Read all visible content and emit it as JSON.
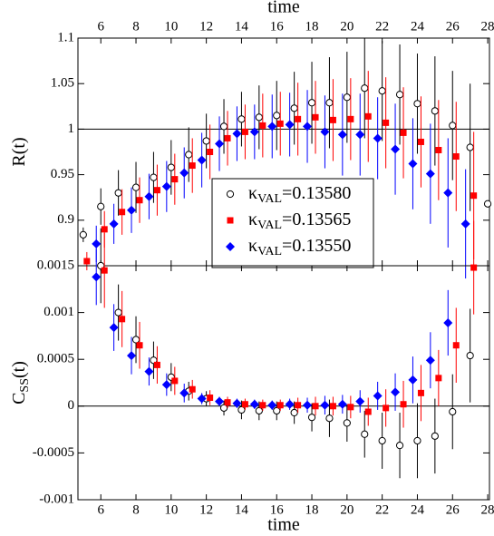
{
  "chart_data": [
    {
      "type": "scatter",
      "x_title": "time",
      "y_title": [
        "R(t)"
      ],
      "x": [
        5,
        6,
        7,
        8,
        9,
        10,
        11,
        12,
        13,
        14,
        15,
        16,
        17,
        18,
        19,
        20,
        21,
        22,
        23,
        24,
        25,
        26,
        27,
        28
      ],
      "xlim": [
        4.7,
        28.1
      ],
      "xticks": [
        6,
        8,
        10,
        12,
        14,
        16,
        18,
        20,
        22,
        24,
        26,
        28
      ],
      "ylim": [
        0.85,
        1.1
      ],
      "yticks": [
        0.9,
        0.95,
        1,
        1.05,
        1.1
      ],
      "hline": 1,
      "series": [
        {
          "name": [
            "κ",
            "VAL",
            "=0.13580"
          ],
          "marker": "circle",
          "color": "#000000",
          "values": [
            0.884,
            0.915,
            0.93,
            0.936,
            0.947,
            0.958,
            0.972,
            0.987,
            1.003,
            1.011,
            1.013,
            1.015,
            1.023,
            1.029,
            1.029,
            1.035,
            1.045,
            1.042,
            1.038,
            1.028,
            1.02,
            1.004,
            0.98,
            0.918
          ],
          "errors": [
            0.008,
            0.02,
            0.025,
            0.028,
            0.028,
            0.03,
            0.03,
            0.03,
            0.03,
            0.03,
            0.035,
            0.038,
            0.04,
            0.045,
            0.05,
            0.05,
            0.055,
            0.055,
            0.055,
            0.055,
            0.06,
            0.06,
            0.07,
            0
          ]
        },
        {
          "name": [
            "κ",
            "VAL",
            "=0.13565"
          ],
          "marker": "square",
          "color": "#ff0000",
          "values": [
            0.855,
            0.89,
            0.909,
            0.922,
            0.933,
            0.945,
            0.96,
            0.975,
            0.99,
            0.997,
            1.004,
            1.006,
            1.011,
            1.013,
            1.01,
            1.011,
            1.014,
            1.007,
            0.996,
            0.986,
            0.977,
            0.97,
            0.927,
            null
          ],
          "errors": [
            0.01,
            0.02,
            0.025,
            0.025,
            0.028,
            0.028,
            0.03,
            0.03,
            0.03,
            0.03,
            0.035,
            0.035,
            0.04,
            0.04,
            0.045,
            0.045,
            0.05,
            0.05,
            0.05,
            0.05,
            0.055,
            0.06,
            0.07,
            null
          ]
        },
        {
          "name": [
            "κ",
            "VAL",
            "=0.13550"
          ],
          "marker": "diamond",
          "color": "#0000ff",
          "values": [
            null,
            0.874,
            0.896,
            0.911,
            0.926,
            0.937,
            0.952,
            0.966,
            0.984,
            0.995,
            0.997,
            1.003,
            1.005,
            1.003,
            0.997,
            0.994,
            0.994,
            0.99,
            0.978,
            0.962,
            0.951,
            0.93,
            0.896,
            null
          ],
          "errors": [
            null,
            0.02,
            0.022,
            0.025,
            0.025,
            0.028,
            0.028,
            0.03,
            0.03,
            0.03,
            0.03,
            0.035,
            0.035,
            0.04,
            0.04,
            0.045,
            0.045,
            0.045,
            0.05,
            0.05,
            0.055,
            0.06,
            0.06,
            null
          ]
        }
      ]
    },
    {
      "type": "scatter",
      "x_title": "time",
      "y_title": [
        "C",
        "SS",
        "(t)"
      ],
      "x": [
        5,
        6,
        7,
        8,
        9,
        10,
        11,
        12,
        13,
        14,
        15,
        16,
        17,
        18,
        19,
        20,
        21,
        22,
        23,
        24,
        25,
        26,
        27,
        28
      ],
      "xlim": [
        4.7,
        28.1
      ],
      "xticks": [
        6,
        8,
        10,
        12,
        14,
        16,
        18,
        20,
        22,
        24,
        26,
        28
      ],
      "ylim": [
        -0.001,
        0.0015
      ],
      "yticks": [
        -0.001,
        -0.0005,
        0,
        0.0005,
        0.001,
        0.0015
      ],
      "hline": 0,
      "series": [
        {
          "name": [
            "κ",
            "VAL",
            "=0.13580"
          ],
          "marker": "circle",
          "color": "#000000",
          "values": [
            null,
            0.0015,
            0.001,
            0.00071,
            0.00049,
            0.00031,
            0.00016,
            8e-05,
            -2e-05,
            -4e-05,
            -5e-05,
            -5e-05,
            -7e-05,
            -0.00012,
            -0.00013,
            -0.00018,
            -0.0003,
            -0.00037,
            -0.00042,
            -0.00037,
            -0.00032,
            -6e-05,
            0.00054,
            null
          ],
          "errors": [
            null,
            0.0004,
            0.0003,
            0.00025,
            0.0002,
            0.00015,
            0.0001,
            8e-05,
            8e-05,
            0.0001,
            0.0001,
            0.0001,
            0.00012,
            0.00015,
            0.0002,
            0.0002,
            0.00025,
            0.0003,
            0.00035,
            0.0004,
            0.0004,
            0.0004,
            0.0005,
            null
          ]
        },
        {
          "name": [
            "κ",
            "VAL",
            "=0.13565"
          ],
          "marker": "square",
          "color": "#ff0000",
          "values": [
            null,
            0.00145,
            0.00093,
            0.00065,
            0.00044,
            0.00027,
            0.00018,
            9e-05,
            4e-05,
            2e-05,
            1e-05,
            1e-05,
            1e-05,
            0,
            0,
            -1e-05,
            -6e-05,
            -2e-05,
            2e-05,
            0.00014,
            0.0003,
            0.00065,
            0.00148,
            null
          ],
          "errors": [
            null,
            0.0004,
            0.0003,
            0.00025,
            0.0002,
            0.00015,
            0.0001,
            8e-05,
            6e-05,
            6e-05,
            6e-05,
            6e-05,
            8e-05,
            0.0001,
            0.0001,
            0.00012,
            0.00015,
            0.0002,
            0.00025,
            0.0003,
            0.0003,
            0.0004,
            0.0005,
            null
          ]
        },
        {
          "name": [
            "κ",
            "VAL",
            "=0.13550"
          ],
          "marker": "diamond",
          "color": "#0000ff",
          "values": [
            null,
            0.00138,
            0.00084,
            0.00054,
            0.00037,
            0.00023,
            0.00014,
            8e-05,
            5e-05,
            3e-05,
            2e-05,
            1e-05,
            2e-05,
            1e-05,
            1e-05,
            2e-05,
            5e-05,
            0.00011,
            0.00015,
            0.00028,
            0.00049,
            0.00089,
            null,
            null
          ],
          "errors": [
            null,
            0.0003,
            0.00025,
            0.0002,
            0.00015,
            0.00012,
            0.0001,
            6e-05,
            5e-05,
            5e-05,
            5e-05,
            5e-05,
            6e-05,
            8e-05,
            0.0001,
            0.0001,
            0.00012,
            0.00015,
            0.0002,
            0.00025,
            0.0003,
            0.00035,
            null,
            null
          ]
        }
      ]
    }
  ]
}
